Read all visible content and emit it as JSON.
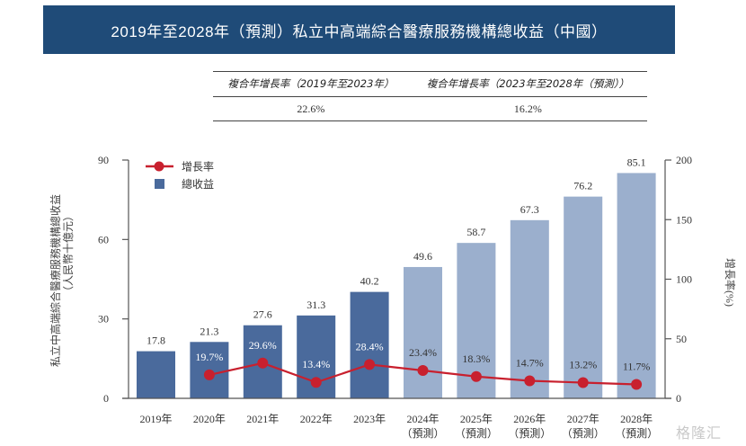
{
  "title": "2019年至2028年（預測）私立中高端綜合醫療服務機構總收益（中國）",
  "cagr_table": {
    "headers": [
      "複合年增長率（2019年至2023年）",
      "複合年增長率（2023年至2028年（預測））"
    ],
    "values": [
      "22.6%",
      "16.2%"
    ]
  },
  "watermark": "格隆汇",
  "colors": {
    "title_bg": "#1f4b78",
    "bar_actual": "#4a6a9c",
    "bar_forecast": "#9bafcd",
    "line": "#c8202e"
  },
  "chart_data": {
    "type": "bar",
    "title": "2019年至2028年（預測）私立中高端綜合醫療服務機構總收益（中國）",
    "categories": [
      "2019年",
      "2020年",
      "2021年",
      "2022年",
      "2023年",
      "2024年",
      "2025年",
      "2026年",
      "2027年",
      "2028年"
    ],
    "category_sublabels": [
      "",
      "",
      "",
      "",
      "",
      "（預測）",
      "（預測）",
      "（預測）",
      "（預測）",
      "（預測）"
    ],
    "forecast": [
      false,
      false,
      false,
      false,
      false,
      true,
      true,
      true,
      true,
      true
    ],
    "series": [
      {
        "name": "總收益",
        "type": "bar",
        "axis": "left",
        "values": [
          17.8,
          21.3,
          27.6,
          31.3,
          40.2,
          49.6,
          58.7,
          67.3,
          76.2,
          85.1
        ],
        "labels": [
          "17.8",
          "21.3",
          "27.6",
          "31.3",
          "40.2",
          "49.6",
          "58.7",
          "67.3",
          "76.2",
          "85.1"
        ]
      },
      {
        "name": "增長率",
        "type": "line",
        "axis": "right",
        "values": [
          null,
          19.7,
          29.6,
          13.4,
          28.4,
          23.4,
          18.3,
          14.7,
          13.2,
          11.7
        ],
        "labels": [
          "",
          "19.7%",
          "29.6%",
          "13.4%",
          "28.4%",
          "23.4%",
          "18.3%",
          "14.7%",
          "13.2%",
          "11.7%"
        ]
      }
    ],
    "ylabel": "私立中高端綜合醫療服務機構總收益",
    "ylabel_unit": "（人民幣十億元）",
    "y2label": "增長率(%)",
    "ylim": [
      0,
      90
    ],
    "yticks": [
      0,
      30,
      60,
      90
    ],
    "y2lim": [
      0,
      200
    ],
    "y2ticks": [
      0,
      50,
      100,
      150,
      200
    ],
    "legend": {
      "placement": "top-left",
      "entries": [
        "增長率",
        "總收益"
      ]
    },
    "grid": false
  }
}
